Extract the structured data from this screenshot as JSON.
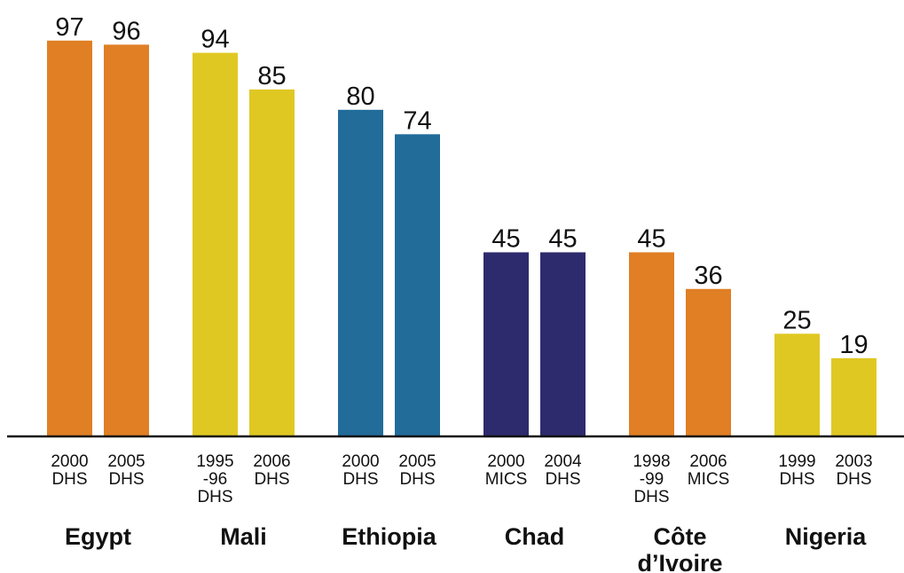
{
  "chart_data": {
    "type": "bar",
    "title": "",
    "xlabel": "",
    "ylabel": "",
    "ylim": [
      0,
      100
    ],
    "grid": false,
    "legend": "none",
    "groups": [
      {
        "country": [
          "Egypt"
        ],
        "color": "#E07F24",
        "bars": [
          {
            "survey": [
              "2000",
              "DHS"
            ],
            "value": 97
          },
          {
            "survey": [
              "2005",
              "DHS"
            ],
            "value": 96
          }
        ]
      },
      {
        "country": [
          "Mali"
        ],
        "color": "#E0C823",
        "bars": [
          {
            "survey": [
              "1995",
              "-96",
              "DHS"
            ],
            "value": 94
          },
          {
            "survey": [
              "2006",
              "DHS"
            ],
            "value": 85
          }
        ]
      },
      {
        "country": [
          "Ethiopia"
        ],
        "color": "#226C9A",
        "bars": [
          {
            "survey": [
              "2000",
              "DHS"
            ],
            "value": 80
          },
          {
            "survey": [
              "2005",
              "DHS"
            ],
            "value": 74
          }
        ]
      },
      {
        "country": [
          "Chad"
        ],
        "color": "#2E2A6E",
        "bars": [
          {
            "survey": [
              "2000",
              "MICS"
            ],
            "value": 45
          },
          {
            "survey": [
              "2004",
              "DHS"
            ],
            "value": 45
          }
        ]
      },
      {
        "country": [
          "Côte",
          "d’Ivoire"
        ],
        "color": "#E07F24",
        "bars": [
          {
            "survey": [
              "1998",
              "-99",
              "DHS"
            ],
            "value": 45
          },
          {
            "survey": [
              "2006",
              "MICS"
            ],
            "value": 36
          }
        ]
      },
      {
        "country": [
          "Nigeria"
        ],
        "color": "#E0C823",
        "bars": [
          {
            "survey": [
              "1999",
              "DHS"
            ],
            "value": 25
          },
          {
            "survey": [
              "2003",
              "DHS"
            ],
            "value": 19
          }
        ]
      }
    ]
  }
}
